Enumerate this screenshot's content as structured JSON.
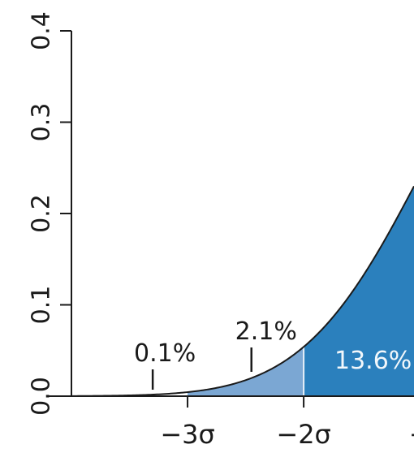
{
  "chart_data": {
    "type": "area",
    "title": "",
    "xlabel": "",
    "ylabel": "",
    "xlim": [
      -4,
      -1.05
    ],
    "ylim": [
      0,
      0.4
    ],
    "distribution": "standard-normal-density",
    "y_ticks": [
      {
        "value": 0.0,
        "label": "0.0"
      },
      {
        "value": 0.1,
        "label": "0.1"
      },
      {
        "value": 0.2,
        "label": "0.2"
      },
      {
        "value": 0.3,
        "label": "0.3"
      },
      {
        "value": 0.4,
        "label": "0.4"
      }
    ],
    "x_ticks": [
      {
        "value": -3,
        "label": "−3σ"
      },
      {
        "value": -2,
        "label": "−2σ"
      },
      {
        "value": -1,
        "label": "−"
      }
    ],
    "regions": [
      {
        "from": -4,
        "to": -3,
        "percent_label": "0.1%",
        "color": "#ffffff",
        "pointer_x": -3.3
      },
      {
        "from": -3,
        "to": -2,
        "percent_label": "2.1%",
        "color": "#7ba7d3",
        "pointer_x": -2.45
      },
      {
        "from": -2,
        "to": -1.05,
        "percent_label": "13.6%",
        "color": "#2b80bd"
      }
    ],
    "grid": false,
    "curve_color": "#1a1a1a",
    "divider_color": "#e8f0f8"
  }
}
